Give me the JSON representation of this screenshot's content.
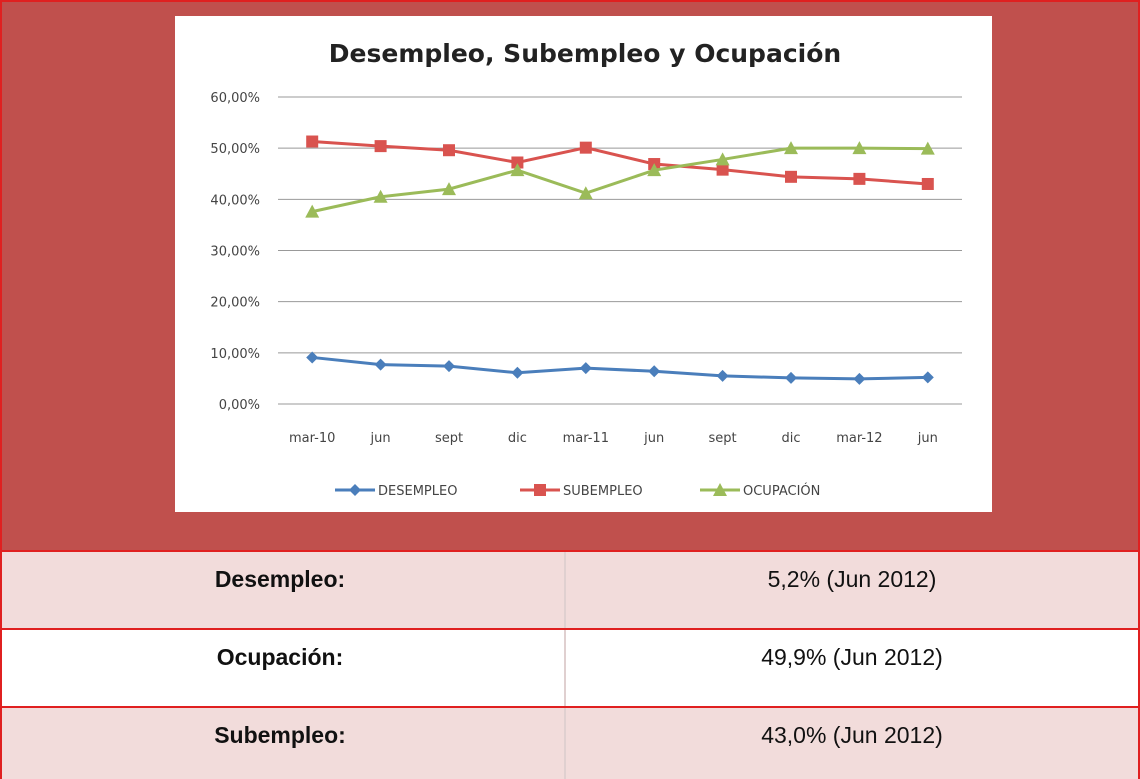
{
  "chart_data": {
    "type": "line",
    "title": "Desempleo, Subempleo y Ocupación",
    "categories": [
      "mar-10",
      "jun",
      "sept",
      "dic",
      "mar-11",
      "jun",
      "sept",
      "dic",
      "mar-12",
      "jun"
    ],
    "series": [
      {
        "name": "DESEMPLEO",
        "color": "#4a7ebb",
        "marker": "diamond",
        "values": [
          9.1,
          7.7,
          7.4,
          6.1,
          7.0,
          6.4,
          5.5,
          5.1,
          4.9,
          5.2
        ]
      },
      {
        "name": "SUBEMPLEO",
        "color": "#d9534f",
        "marker": "square",
        "values": [
          51.3,
          50.4,
          49.6,
          47.2,
          50.1,
          46.9,
          45.8,
          44.4,
          44.0,
          43.0
        ]
      },
      {
        "name": "OCUPACIÓN",
        "color": "#9bbb59",
        "marker": "triangle",
        "values": [
          37.6,
          40.5,
          42.0,
          45.7,
          41.2,
          45.7,
          47.8,
          50.0,
          50.0,
          49.9
        ]
      }
    ],
    "ylim": [
      0,
      60
    ],
    "yticks": [
      {
        "value": 0,
        "label": "0,00%"
      },
      {
        "value": 10,
        "label": "10,00%"
      },
      {
        "value": 20,
        "label": "20,00%"
      },
      {
        "value": 30,
        "label": "30,00%"
      },
      {
        "value": 40,
        "label": "40,00%"
      },
      {
        "value": 50,
        "label": "50,00%"
      },
      {
        "value": 60,
        "label": "60,00%"
      }
    ],
    "grid": true,
    "legend": "bottom"
  },
  "table": {
    "rows": [
      [
        "Desempleo:",
        "5,2% (Jun 2012)"
      ],
      [
        "Ocupación:",
        "49,9% (Jun 2012)"
      ],
      [
        "Subempleo:",
        "43,0% (Jun 2012)"
      ]
    ]
  }
}
